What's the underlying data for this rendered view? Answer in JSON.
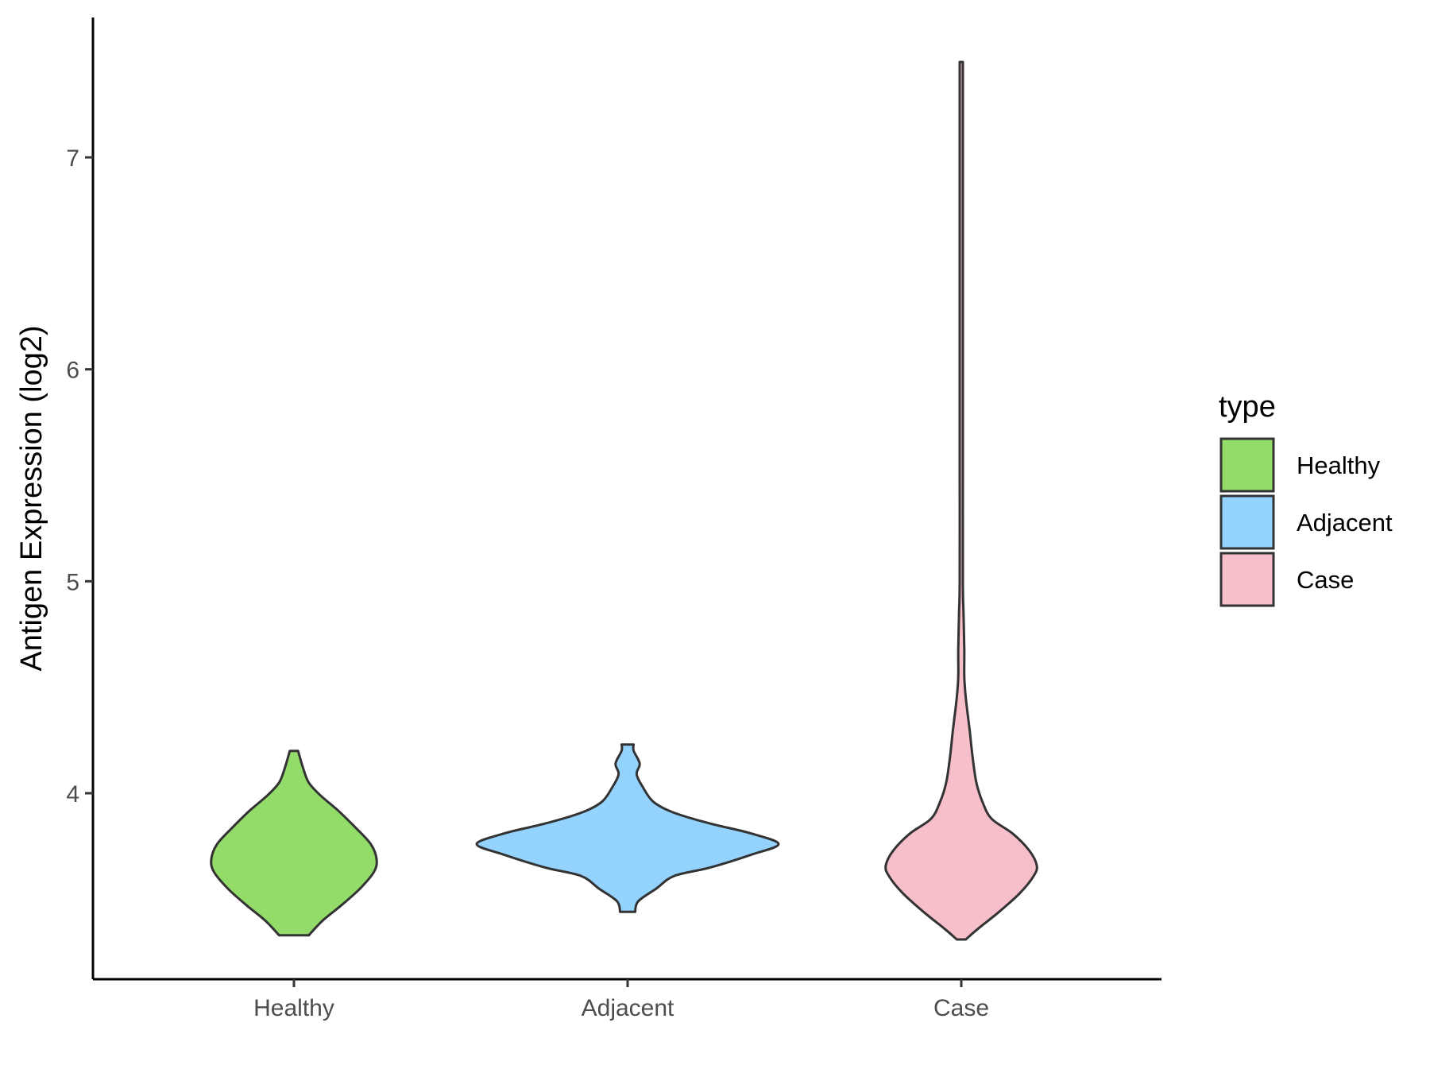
{
  "chart_data": {
    "type": "violin",
    "title": "",
    "xlabel": "",
    "ylabel": "Antigen Expression (log2)",
    "categories": [
      "Healthy",
      "Adjacent",
      "Case"
    ],
    "y_ticks": [
      4,
      5,
      6,
      7
    ],
    "ylim": [
      3.1,
      7.7
    ],
    "grid": false,
    "legend": {
      "title": "type",
      "placement": "right",
      "entries": [
        "Healthy",
        "Adjacent",
        "Case"
      ]
    },
    "colors": {
      "Healthy": "#93dc6a",
      "Adjacent": "#93d3fd",
      "Case": "#f7bfca",
      "outline": "#333333"
    },
    "series": [
      {
        "category": "Healthy",
        "density_profile": [
          [
            3.33,
            0.18
          ],
          [
            3.4,
            0.35
          ],
          [
            3.47,
            0.57
          ],
          [
            3.55,
            0.8
          ],
          [
            3.63,
            0.97
          ],
          [
            3.69,
            1.0
          ],
          [
            3.76,
            0.93
          ],
          [
            3.84,
            0.74
          ],
          [
            3.92,
            0.53
          ],
          [
            3.99,
            0.32
          ],
          [
            4.05,
            0.18
          ],
          [
            4.12,
            0.11
          ],
          [
            4.2,
            0.05
          ]
        ]
      },
      {
        "category": "Adjacent",
        "density_profile": [
          [
            3.44,
            0.05
          ],
          [
            3.49,
            0.07
          ],
          [
            3.55,
            0.19
          ],
          [
            3.61,
            0.31
          ],
          [
            3.65,
            0.55
          ],
          [
            3.71,
            0.82
          ],
          [
            3.76,
            1.0
          ],
          [
            3.81,
            0.82
          ],
          [
            3.86,
            0.53
          ],
          [
            3.91,
            0.3
          ],
          [
            3.96,
            0.17
          ],
          [
            4.03,
            0.1
          ],
          [
            4.09,
            0.06
          ],
          [
            4.14,
            0.08
          ],
          [
            4.2,
            0.04
          ],
          [
            4.23,
            0.04
          ]
        ]
      },
      {
        "category": "Case",
        "density_profile": [
          [
            3.31,
            0.06
          ],
          [
            3.36,
            0.22
          ],
          [
            3.44,
            0.5
          ],
          [
            3.53,
            0.78
          ],
          [
            3.61,
            0.96
          ],
          [
            3.66,
            1.0
          ],
          [
            3.73,
            0.9
          ],
          [
            3.81,
            0.68
          ],
          [
            3.88,
            0.4
          ],
          [
            3.96,
            0.28
          ],
          [
            4.05,
            0.2
          ],
          [
            4.17,
            0.15
          ],
          [
            4.3,
            0.11
          ],
          [
            4.45,
            0.06
          ],
          [
            4.55,
            0.04
          ],
          [
            4.68,
            0.04
          ],
          [
            4.85,
            0.03
          ],
          [
            5.0,
            0.015
          ],
          [
            5.5,
            0.012
          ],
          [
            6.0,
            0.012
          ],
          [
            6.5,
            0.01
          ],
          [
            7.0,
            0.01
          ],
          [
            7.45,
            0.01
          ]
        ]
      }
    ]
  }
}
